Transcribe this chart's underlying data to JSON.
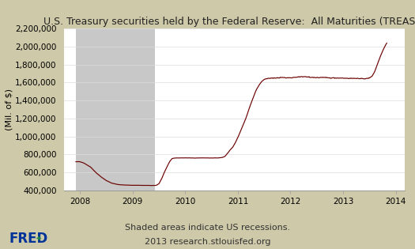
{
  "title": "U.S. Treasury securities held by the Federal Reserve:  All Maturities (TREAST)",
  "ylabel": "(Mil. of $)",
  "xlabel_note1": "Shaded areas indicate US recessions.",
  "xlabel_note2": "2013 research.stlouisfed.org",
  "recession_start": 2007.92,
  "recession_end": 2009.42,
  "xmin": 2007.7,
  "xmax": 2014.17,
  "ymin": 400000,
  "ymax": 2200000,
  "yticks": [
    400000,
    600000,
    800000,
    1000000,
    1200000,
    1400000,
    1600000,
    1800000,
    2000000,
    2200000
  ],
  "xticks": [
    2008,
    2009,
    2010,
    2011,
    2012,
    2013,
    2014
  ],
  "line_color": "#6b0000",
  "recession_color": "#c8c8c8",
  "background_outer": "#cec9a8",
  "background_plot": "#ffffff",
  "grid_color": "#dddddd",
  "title_fontsize": 9.0,
  "label_fontsize": 8,
  "tick_fontsize": 7.5
}
